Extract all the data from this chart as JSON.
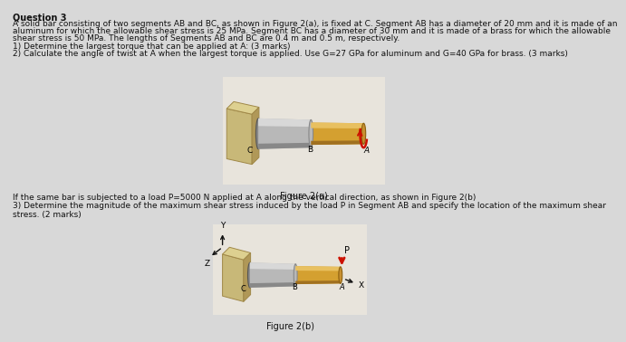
{
  "bg_color": "#d8d8d8",
  "title": "Question 3",
  "para1": "A solid bar consisting of two segments AB and BC, as shown in Figure 2(a), is fixed at C. Segment AB has a diameter of 20 mm and it is made of an",
  "para2": "aluminum for which the allowable shear stress is 25 MPa. Segment BC has a diameter of 30 mm and it is made of a brass for which the allowable",
  "para3": "shear stress is 50 MPa. The lengths of Segments AB and BC are 0.4 m and 0.5 m, respectively.",
  "q1": "1) Determine the largest torque that can be applied at A: (3 marks)",
  "q2": "2) Calculate the angle of twist at A when the largest torque is applied. Use G=27 GPa for aluminum and G=40 GPa for brass. (3 marks)",
  "fig2a_caption": "Figure 2(a)",
  "fig2b_caption": "Figure 2(b)",
  "transition": "If the same bar is subjected to a load P=5000 N applied at A along the vertical direction, as shown in Figure 2(b)",
  "q3a": "3) Determine the magnitude of the maximum shear stress induced by the load P in Segment AB and specify the location of the maximum shear",
  "q3b": "stress. (2 marks)",
  "font_size_title": 7.0,
  "font_size_body": 6.5,
  "text_color": "#111111",
  "wall_face": "#c8b878",
  "wall_top": "#ddd090",
  "wall_side": "#b09858",
  "wall_edge": "#a08848",
  "bc_main": "#b8b8b8",
  "bc_highlight": "#d8d8d8",
  "bc_shadow": "#888888",
  "ab_main": "#d4a030",
  "ab_highlight": "#e8c060",
  "ab_shadow": "#a07020",
  "torque_color": "#cc1100",
  "p_arrow_color": "#cc1100",
  "axes_color": "#111111",
  "fig_bg": "#e8e4dc"
}
